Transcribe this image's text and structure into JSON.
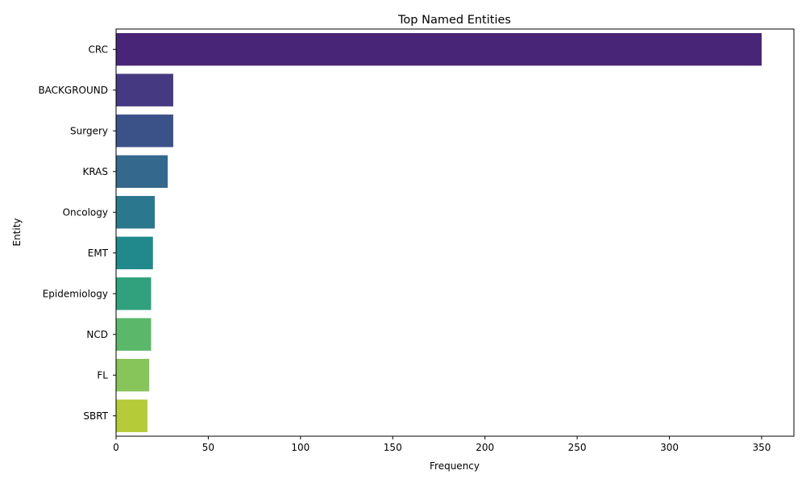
{
  "chart_data": {
    "type": "bar",
    "orientation": "horizontal",
    "title": "Top Named Entities",
    "xlabel": "Frequency",
    "ylabel": "Entity",
    "xlim": [
      0,
      367.5
    ],
    "x_ticks": [
      0,
      50,
      100,
      150,
      200,
      250,
      300,
      350
    ],
    "grid": false,
    "categories": [
      "CRC",
      "BACKGROUND",
      "Surgery",
      "KRAS",
      "Oncology",
      "EMT",
      "Epidemiology",
      "NCD",
      "FL",
      "SBRT"
    ],
    "values": [
      350,
      31,
      31,
      28,
      21,
      20,
      19,
      19,
      18,
      17
    ],
    "colors": [
      "#482576",
      "#453a82",
      "#3b5289",
      "#34688d",
      "#2a778e",
      "#21898b",
      "#30a17c",
      "#5bb86a",
      "#87c45a",
      "#b5cb37"
    ]
  }
}
